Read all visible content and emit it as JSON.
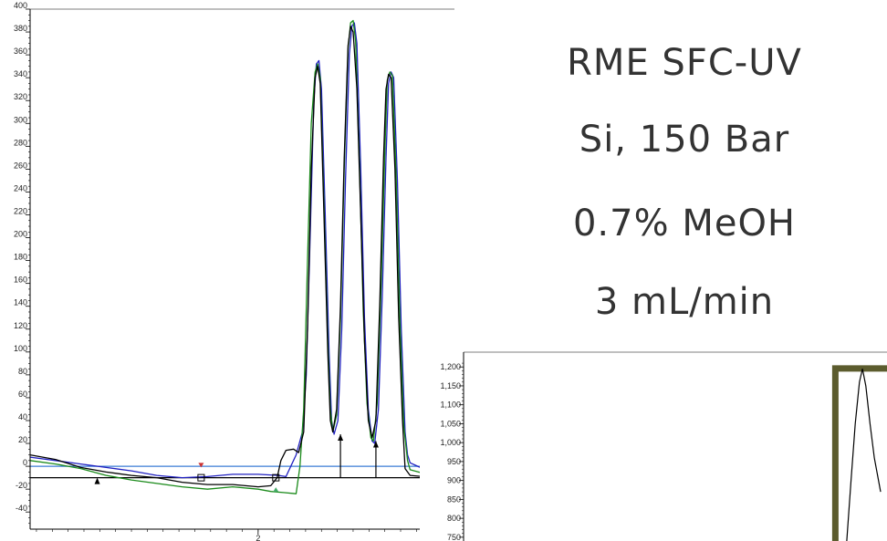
{
  "captions": [
    "RME SFC-UV",
    "Si, 150 Bar",
    "0.7% MeOH",
    "3 mL/min"
  ],
  "chart_data": [
    {
      "type": "line",
      "title": "",
      "xlabel": "",
      "ylabel": "",
      "xlim": [
        0.2,
        3.55
      ],
      "ylim": [
        -55,
        400
      ],
      "x_ticks": [
        {
          "value": 2,
          "label": "2"
        }
      ],
      "y_ticks": [
        {
          "value": 400,
          "label": "400"
        },
        {
          "value": 380,
          "label": "380"
        },
        {
          "value": 360,
          "label": "360"
        },
        {
          "value": 340,
          "label": "340"
        },
        {
          "value": 320,
          "label": "320"
        },
        {
          "value": 300,
          "label": "300"
        },
        {
          "value": 280,
          "label": "280"
        },
        {
          "value": 260,
          "label": "260"
        },
        {
          "value": 240,
          "label": "240"
        },
        {
          "value": 220,
          "label": "220"
        },
        {
          "value": 200,
          "label": "200"
        },
        {
          "value": 180,
          "label": "180"
        },
        {
          "value": 160,
          "label": "160"
        },
        {
          "value": 140,
          "label": "140"
        },
        {
          "value": 120,
          "label": "120"
        },
        {
          "value": 100,
          "label": "100"
        },
        {
          "value": 80,
          "label": "80"
        },
        {
          "value": 60,
          "label": "60"
        },
        {
          "value": 40,
          "label": "40"
        },
        {
          "value": 20,
          "label": "20"
        },
        {
          "value": 0,
          "label": "0"
        },
        {
          "value": -20,
          "label": "-20"
        },
        {
          "value": -40,
          "label": "-40"
        }
      ],
      "reference_lines": [
        {
          "y": 0,
          "color": "#3a7bd5"
        },
        {
          "y": -10,
          "color": "#000000"
        }
      ],
      "series": [
        {
          "color": "#2020c0",
          "points": [
            [
              0.2,
              8
            ],
            [
              0.4,
              5
            ],
            [
              0.6,
              2
            ],
            [
              0.8,
              -1
            ],
            [
              1.0,
              -4
            ],
            [
              1.2,
              -8
            ],
            [
              1.4,
              -10
            ],
            [
              1.6,
              -9
            ],
            [
              1.8,
              -7
            ],
            [
              2.0,
              -7
            ],
            [
              2.16,
              -8
            ],
            [
              2.22,
              -9
            ],
            [
              2.3,
              10
            ],
            [
              2.35,
              30
            ],
            [
              2.38,
              80
            ],
            [
              2.41,
              200
            ],
            [
              2.44,
              320
            ],
            [
              2.46,
              352
            ],
            [
              2.48,
              355
            ],
            [
              2.5,
              330
            ],
            [
              2.53,
              220
            ],
            [
              2.56,
              100
            ],
            [
              2.58,
              40
            ],
            [
              2.6,
              28
            ],
            [
              2.63,
              40
            ],
            [
              2.66,
              120
            ],
            [
              2.69,
              250
            ],
            [
              2.72,
              360
            ],
            [
              2.74,
              385
            ],
            [
              2.76,
              388
            ],
            [
              2.78,
              370
            ],
            [
              2.81,
              260
            ],
            [
              2.84,
              130
            ],
            [
              2.87,
              50
            ],
            [
              2.9,
              22
            ],
            [
              2.92,
              20
            ],
            [
              2.95,
              50
            ],
            [
              2.98,
              150
            ],
            [
              3.01,
              270
            ],
            [
              3.03,
              335
            ],
            [
              3.05,
              345
            ],
            [
              3.07,
              340
            ],
            [
              3.1,
              250
            ],
            [
              3.13,
              120
            ],
            [
              3.16,
              30
            ],
            [
              3.18,
              10
            ],
            [
              3.2,
              3
            ],
            [
              3.3,
              -2
            ],
            [
              3.4,
              -4
            ],
            [
              3.55,
              -5
            ]
          ]
        },
        {
          "color": "#1a8a1a",
          "points": [
            [
              0.2,
              5
            ],
            [
              0.4,
              2
            ],
            [
              0.6,
              -2
            ],
            [
              0.8,
              -8
            ],
            [
              1.0,
              -12
            ],
            [
              1.2,
              -15
            ],
            [
              1.4,
              -18
            ],
            [
              1.6,
              -20
            ],
            [
              1.8,
              -18
            ],
            [
              2.0,
              -20
            ],
            [
              2.1,
              -22
            ],
            [
              2.2,
              -23
            ],
            [
              2.3,
              -24
            ],
            [
              2.33,
              0
            ],
            [
              2.36,
              50
            ],
            [
              2.39,
              180
            ],
            [
              2.42,
              300
            ],
            [
              2.45,
              345
            ],
            [
              2.47,
              352
            ],
            [
              2.49,
              340
            ],
            [
              2.52,
              230
            ],
            [
              2.55,
              110
            ],
            [
              2.57,
              50
            ],
            [
              2.59,
              30
            ],
            [
              2.62,
              45
            ],
            [
              2.65,
              130
            ],
            [
              2.68,
              260
            ],
            [
              2.71,
              365
            ],
            [
              2.73,
              388
            ],
            [
              2.75,
              390
            ],
            [
              2.77,
              372
            ],
            [
              2.8,
              265
            ],
            [
              2.83,
              135
            ],
            [
              2.86,
              55
            ],
            [
              2.89,
              25
            ],
            [
              2.91,
              22
            ],
            [
              2.94,
              55
            ],
            [
              2.97,
              155
            ],
            [
              3.0,
              275
            ],
            [
              3.02,
              338
            ],
            [
              3.04,
              345
            ],
            [
              3.06,
              342
            ],
            [
              3.09,
              255
            ],
            [
              3.12,
              125
            ],
            [
              3.15,
              35
            ],
            [
              3.18,
              5
            ],
            [
              3.2,
              -3
            ],
            [
              3.3,
              -6
            ],
            [
              3.4,
              -8
            ],
            [
              3.55,
              -12
            ]
          ]
        },
        {
          "color": "#000000",
          "points": [
            [
              0.2,
              10
            ],
            [
              0.4,
              6
            ],
            [
              0.6,
              -1
            ],
            [
              0.8,
              -5
            ],
            [
              1.0,
              -8
            ],
            [
              1.2,
              -10
            ],
            [
              1.4,
              -14
            ],
            [
              1.6,
              -16
            ],
            [
              1.8,
              -16
            ],
            [
              2.0,
              -18
            ],
            [
              2.1,
              -17
            ],
            [
              2.15,
              -10
            ],
            [
              2.18,
              5
            ],
            [
              2.22,
              14
            ],
            [
              2.28,
              15
            ],
            [
              2.32,
              12
            ],
            [
              2.36,
              30
            ],
            [
              2.39,
              120
            ],
            [
              2.42,
              260
            ],
            [
              2.45,
              340
            ],
            [
              2.47,
              350
            ],
            [
              2.49,
              335
            ],
            [
              2.52,
              220
            ],
            [
              2.55,
              100
            ],
            [
              2.57,
              40
            ],
            [
              2.59,
              30
            ],
            [
              2.62,
              50
            ],
            [
              2.65,
              140
            ],
            [
              2.68,
              270
            ],
            [
              2.71,
              368
            ],
            [
              2.73,
              385
            ],
            [
              2.75,
              380
            ],
            [
              2.78,
              330
            ],
            [
              2.81,
              220
            ],
            [
              2.84,
              110
            ],
            [
              2.87,
              40
            ],
            [
              2.9,
              25
            ],
            [
              2.93,
              40
            ],
            [
              2.96,
              140
            ],
            [
              2.99,
              270
            ],
            [
              3.01,
              330
            ],
            [
              3.03,
              343
            ],
            [
              3.05,
              340
            ],
            [
              3.08,
              260
            ],
            [
              3.11,
              130
            ],
            [
              3.14,
              40
            ],
            [
              3.16,
              -2
            ],
            [
              3.2,
              -8
            ],
            [
              3.3,
              -9
            ],
            [
              3.4,
              -10
            ],
            [
              3.55,
              -10
            ]
          ]
        }
      ],
      "markers": [
        {
          "type": "arrow-up",
          "x": 0.73,
          "y": -10,
          "color": "#000000"
        },
        {
          "type": "square",
          "x": 1.55,
          "y": -10,
          "color": "#000000"
        },
        {
          "type": "triangle-down",
          "x": 1.55,
          "y": -5,
          "color": "#cc3333"
        },
        {
          "type": "square",
          "x": 2.14,
          "y": -10,
          "color": "#000000"
        },
        {
          "type": "triangle-up",
          "x": 2.14,
          "y": -16,
          "color": "#44aa66"
        },
        {
          "type": "arrow-up",
          "x": 2.65,
          "y": 28,
          "color": "#000000"
        },
        {
          "type": "arrow-up",
          "x": 2.93,
          "y": 22,
          "color": "#000000"
        },
        {
          "type": "square",
          "x": 3.55,
          "y": -10,
          "color": "#000000"
        },
        {
          "type": "triangle-down",
          "x": 3.55,
          "y": -5,
          "color": "#cc3333"
        }
      ]
    },
    {
      "type": "line",
      "title": "",
      "xlabel": "",
      "ylabel": "",
      "xlim": [
        0,
        1
      ],
      "ylim": [
        740,
        1215
      ],
      "y_ticks": [
        {
          "value": 1200,
          "label": "1,200"
        },
        {
          "value": 1150,
          "label": "1,150"
        },
        {
          "value": 1100,
          "label": "1,100"
        },
        {
          "value": 1050,
          "label": "1,050"
        },
        {
          "value": 1000,
          "label": "1,000"
        },
        {
          "value": 950,
          "label": "950"
        },
        {
          "value": 900,
          "label": "900"
        },
        {
          "value": 850,
          "label": "850"
        },
        {
          "value": 800,
          "label": "800"
        },
        {
          "value": 750,
          "label": "750"
        }
      ],
      "frame_color": "#5c5c2e",
      "series": [
        {
          "color": "#000000",
          "points": [
            [
              0.905,
              740
            ],
            [
              0.915,
              900
            ],
            [
              0.925,
              1050
            ],
            [
              0.935,
              1160
            ],
            [
              0.942,
              1195
            ],
            [
              0.95,
              1150
            ],
            [
              0.96,
              1050
            ],
            [
              0.97,
              960
            ],
            [
              0.98,
              900
            ],
            [
              0.985,
              870
            ]
          ]
        }
      ]
    }
  ]
}
